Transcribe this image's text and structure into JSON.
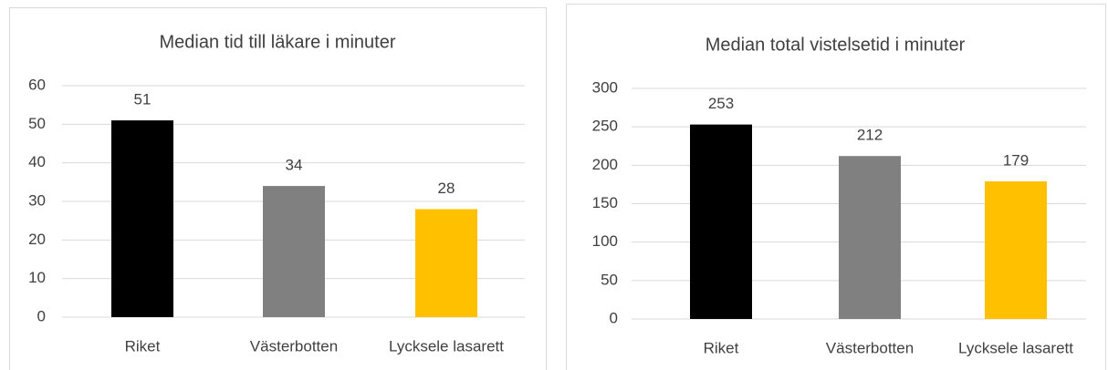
{
  "chart_data": [
    {
      "type": "bar",
      "title": "Median tid till läkare i minuter",
      "categories": [
        "Riket",
        "Västerbotten",
        "Lycksele lasarett"
      ],
      "values": [
        51,
        34,
        28
      ],
      "colors": [
        "#000000",
        "#808080",
        "#ffc000"
      ],
      "ylim": [
        0,
        60
      ],
      "yticks": [
        0,
        10,
        20,
        30,
        40,
        50,
        60
      ],
      "grid": true
    },
    {
      "type": "bar",
      "title": "Median total vistelsetid i minuter",
      "categories": [
        "Riket",
        "Västerbotten",
        "Lycksele lasarett"
      ],
      "values": [
        253,
        212,
        179
      ],
      "colors": [
        "#000000",
        "#808080",
        "#ffc000"
      ],
      "ylim": [
        0,
        300
      ],
      "yticks": [
        0,
        50,
        100,
        150,
        200,
        250,
        300
      ],
      "grid": true
    }
  ]
}
